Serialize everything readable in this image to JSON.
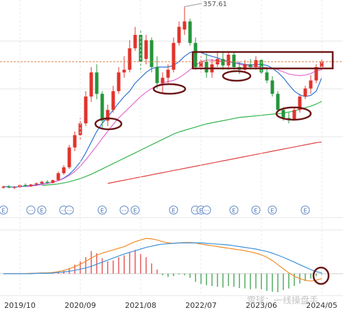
{
  "chart_data": [
    {
      "type": "candlestick",
      "categories": [
        null,
        null,
        null,
        "2019/10",
        null,
        null,
        null,
        null,
        null,
        null,
        null,
        null,
        null,
        null,
        "2020/09",
        null,
        null,
        null,
        null,
        null,
        null,
        null,
        null,
        null,
        null,
        "2021/08",
        null,
        null,
        null,
        null,
        null,
        null,
        null,
        null,
        null,
        null,
        "2022/07",
        null,
        null,
        null,
        null,
        null,
        null,
        null,
        null,
        null,
        null,
        "2023/06",
        null,
        null,
        null,
        null,
        null,
        null,
        null,
        null,
        null,
        null,
        "2024/05"
      ],
      "open": [
        20,
        22,
        20,
        21,
        25,
        23,
        26,
        28,
        31,
        29,
        34,
        47,
        58,
        95,
        118,
        140,
        190,
        235,
        195,
        145,
        165,
        200,
        235,
        240,
        280,
        305,
        260,
        295,
        245,
        215,
        225,
        240,
        290,
        315,
        330,
        290,
        245,
        255,
        235,
        250,
        260,
        248,
        268,
        245,
        240,
        250,
        245,
        258,
        235,
        220,
        195,
        165,
        150,
        148,
        165,
        190,
        205,
        220,
        245
      ],
      "high": [
        24,
        25,
        23,
        26,
        28,
        27,
        30,
        33,
        34,
        35,
        50,
        62,
        100,
        125,
        150,
        200,
        245,
        250,
        200,
        175,
        210,
        245,
        265,
        295,
        320,
        315,
        305,
        300,
        265,
        235,
        250,
        300,
        330,
        357.61,
        335,
        300,
        265,
        270,
        260,
        275,
        275,
        275,
        272,
        255,
        258,
        260,
        265,
        262,
        245,
        228,
        200,
        170,
        160,
        170,
        195,
        210,
        230,
        250,
        262
      ],
      "low": [
        18,
        19,
        17,
        20,
        22,
        21,
        24,
        26,
        27,
        28,
        33,
        44,
        55,
        88,
        110,
        135,
        180,
        185,
        130,
        135,
        160,
        195,
        225,
        235,
        275,
        235,
        250,
        235,
        205,
        195,
        215,
        235,
        285,
        305,
        285,
        240,
        235,
        225,
        225,
        245,
        240,
        240,
        240,
        232,
        235,
        240,
        240,
        230,
        215,
        190,
        160,
        145,
        140,
        145,
        160,
        185,
        195,
        215,
        240
      ],
      "close": [
        22,
        20,
        21,
        25,
        23,
        26,
        28,
        31,
        29,
        34,
        47,
        58,
        95,
        118,
        140,
        190,
        235,
        195,
        145,
        165,
        200,
        235,
        240,
        280,
        305,
        255,
        295,
        245,
        215,
        225,
        240,
        290,
        320,
        330,
        290,
        245,
        255,
        235,
        250,
        260,
        248,
        268,
        245,
        240,
        250,
        245,
        258,
        235,
        220,
        195,
        165,
        150,
        148,
        165,
        190,
        205,
        220,
        245,
        255
      ],
      "up_color": "#e2332c",
      "down_color": "#23963a",
      "ylim": [
        0,
        370
      ],
      "annotation": "357.61",
      "events": [
        "E",
        null,
        null,
        null,
        null,
        "···",
        null,
        "E",
        null,
        null,
        null,
        "···",
        "···",
        null,
        null,
        null,
        null,
        null,
        "E",
        null,
        null,
        null,
        "···",
        null,
        "E",
        null,
        null,
        null,
        null,
        null,
        null,
        "E",
        null,
        null,
        null,
        "···",
        "E",
        "···",
        null,
        null,
        null,
        null,
        "E",
        null,
        null,
        null,
        "E",
        null,
        null,
        "E",
        null,
        null,
        null,
        null,
        null,
        "E",
        null,
        null,
        null
      ],
      "series": [
        {
          "color": "#2b6fd6",
          "values": [
            22,
            22,
            21,
            22,
            23,
            24,
            25,
            27,
            28,
            30,
            33,
            38,
            45,
            55,
            68,
            85,
            105,
            125,
            140,
            152,
            165,
            178,
            190,
            200,
            215,
            225,
            235,
            242,
            245,
            245,
            245,
            248,
            255,
            265,
            272,
            275,
            272,
            268,
            265,
            262,
            258,
            255,
            253,
            252,
            250,
            249,
            250,
            250,
            248,
            243,
            235,
            225,
            212,
            200,
            193,
            190,
            192,
            200,
            225
          ]
        },
        {
          "color": "#e067d0",
          "values": [
            null,
            null,
            null,
            null,
            22,
            23,
            24,
            26,
            28,
            30,
            33,
            37,
            43,
            50,
            60,
            72,
            85,
            98,
            112,
            125,
            138,
            150,
            160,
            170,
            180,
            190,
            198,
            205,
            210,
            215,
            218,
            220,
            225,
            232,
            240,
            248,
            255,
            258,
            258,
            257,
            256,
            255,
            253,
            250,
            248,
            247,
            246,
            245,
            244,
            243,
            240,
            236,
            232,
            230,
            229,
            230,
            233,
            238,
            240
          ]
        },
        {
          "color": "#2fb34a",
          "values": [
            null,
            null,
            null,
            null,
            null,
            null,
            null,
            24,
            25,
            26,
            27,
            29,
            31,
            34,
            37,
            41,
            45,
            50,
            55,
            60,
            65,
            70,
            75,
            80,
            85,
            90,
            95,
            100,
            105,
            110,
            115,
            120,
            124,
            127,
            130,
            133,
            136,
            139,
            141,
            143,
            145,
            147,
            149,
            151,
            152,
            153,
            154,
            155,
            156,
            157,
            158,
            159,
            161,
            163,
            166,
            169,
            172,
            176,
            181
          ]
        },
        {
          "color": "#e04040",
          "values": [
            null,
            null,
            null,
            null,
            null,
            null,
            null,
            null,
            null,
            null,
            null,
            null,
            null,
            null,
            null,
            null,
            null,
            null,
            null,
            28,
            30,
            32,
            34,
            36,
            38,
            40,
            42,
            44,
            46,
            48,
            50,
            52,
            54,
            56,
            58,
            60,
            62,
            64,
            66,
            68,
            70,
            72,
            74,
            76,
            78,
            80,
            82,
            84,
            86,
            88,
            90,
            92,
            94,
            96,
            98,
            100,
            102,
            104,
            105
          ]
        }
      ]
    },
    {
      "type": "macd",
      "ylim": [
        -50,
        100
      ],
      "up_color": "#e03030",
      "down_color": "#23963a",
      "values": [
        0,
        0,
        0,
        0,
        0,
        1,
        1,
        1,
        2,
        2,
        4,
        8,
        14,
        22,
        30,
        40,
        55,
        50,
        38,
        30,
        32,
        40,
        45,
        52,
        58,
        48,
        40,
        25,
        10,
        -4,
        -8,
        -6,
        -2,
        -4,
        -10,
        -20,
        -25,
        -28,
        -30,
        -32,
        -34,
        -30,
        -32,
        -35,
        -36,
        -38,
        -36,
        -38,
        -42,
        -44,
        -45,
        -40,
        -36,
        -30,
        -24,
        -18,
        -12,
        -6,
        -2
      ],
      "series": [
        {
          "color": "#f08a24",
          "values": [
            0,
            0,
            0,
            0,
            0,
            1,
            1,
            2,
            2,
            3,
            5,
            8,
            12,
            17,
            23,
            30,
            38,
            45,
            50,
            54,
            58,
            62,
            66,
            72,
            78,
            82,
            86,
            85,
            82,
            78,
            75,
            74,
            75,
            76,
            76,
            75,
            72,
            70,
            68,
            66,
            64,
            62,
            60,
            58,
            56,
            53,
            50,
            46,
            40,
            32,
            22,
            12,
            2,
            -6,
            -12,
            -16,
            -18,
            -16,
            -12
          ]
        },
        {
          "color": "#3a8fd8",
          "values": [
            0,
            0,
            0,
            0,
            0,
            0,
            1,
            1,
            1,
            2,
            3,
            4,
            6,
            8,
            11,
            14,
            18,
            23,
            28,
            33,
            38,
            43,
            48,
            52,
            56,
            60,
            64,
            67,
            70,
            72,
            73,
            74,
            75,
            75,
            75,
            75,
            75,
            74,
            73,
            72,
            71,
            70,
            68,
            66,
            64,
            62,
            60,
            57,
            54,
            50,
            45,
            40,
            34,
            28,
            22,
            16,
            10,
            5,
            2
          ]
        }
      ],
      "watermark": "雪球：一线操盘手"
    }
  ]
}
